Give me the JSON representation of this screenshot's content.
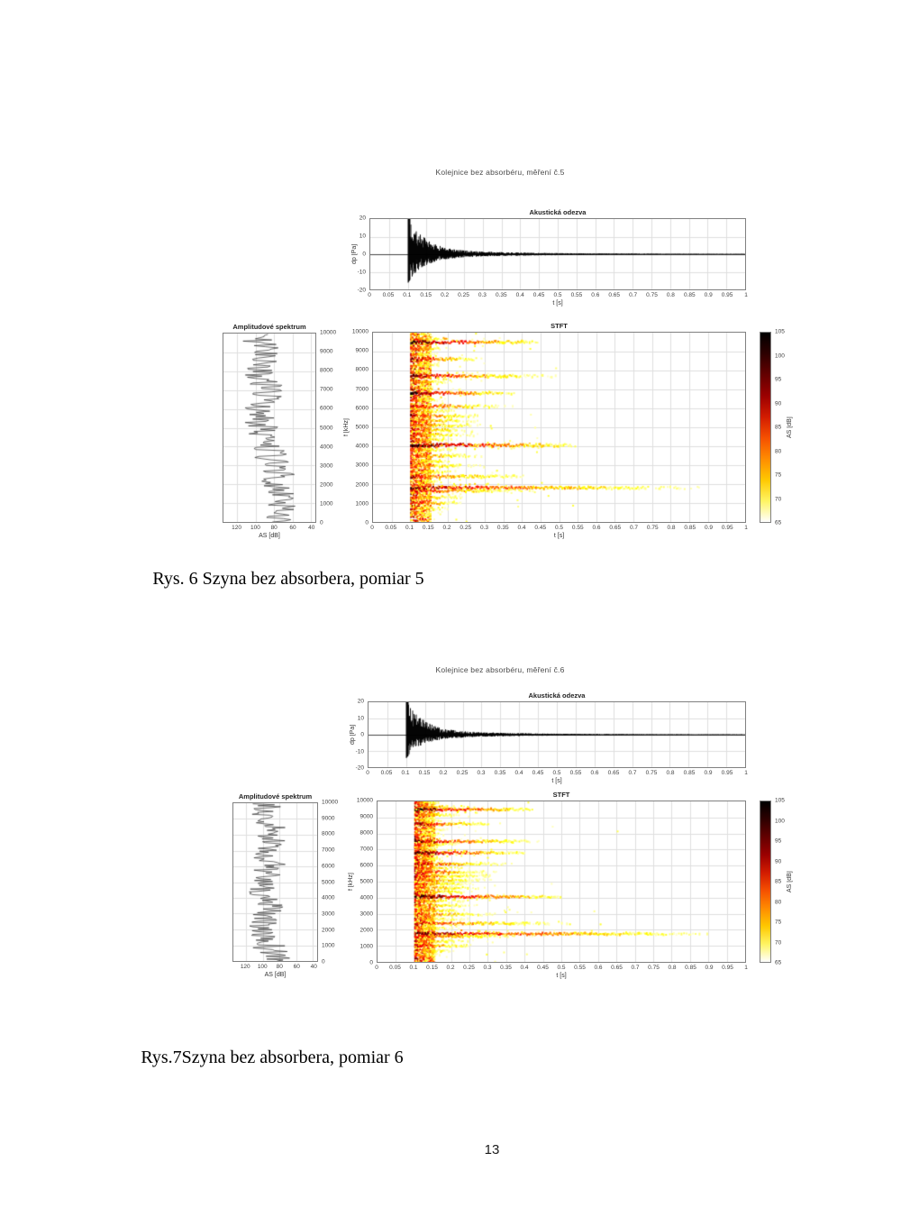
{
  "page": {
    "number": "13"
  },
  "captions": {
    "fig6": "Rys. 6 Szyna bez absorbera, pomiar 5",
    "fig7": "Rys.7Szyna bez absorbera, pomiar 6"
  },
  "colors": {
    "grid": "#dedede",
    "zero_line": "#a8a8a8",
    "axis_frame": "#808080",
    "signal": "#000000",
    "spectrum_line": "#303030",
    "colorbar_top_to_bottom": [
      "#000000",
      "#2e0000",
      "#640000",
      "#9b0000",
      "#d21c00",
      "#f55000",
      "#ff8c00",
      "#ffc800",
      "#fff462",
      "#ffffff"
    ]
  },
  "figures": [
    {
      "window_title": "Kolejnice bez absorbéru, měření č.5",
      "response": {
        "title": "Akustická odezva",
        "xlabel": "t [s]",
        "ylabel": "dp [Pa]",
        "xticks": [
          "0",
          "0.05",
          "0.1",
          "0.15",
          "0.2",
          "0.25",
          "0.3",
          "0.35",
          "0.4",
          "0.45",
          "0.5",
          "0.55",
          "0.6",
          "0.65",
          "0.7",
          "0.75",
          "0.8",
          "0.85",
          "0.9",
          "0.95",
          "1"
        ],
        "yticks": [
          "20",
          "10",
          "0",
          "-10",
          "-20"
        ],
        "chart": {
          "type": "line",
          "xlim": [
            0,
            1
          ],
          "ylim": [
            -20,
            20
          ],
          "onset_s": 0.1,
          "peak_pa": 20,
          "min_pa": -13,
          "seed": 7
        }
      },
      "spectrum": {
        "title": "Amplitudové spektrum",
        "xlabel": "AS [dB]",
        "xticks": [
          "120",
          "100",
          "80",
          "60",
          "40"
        ],
        "yticks": [
          "10000",
          "9000",
          "8000",
          "7000",
          "6000",
          "5000",
          "4000",
          "3000",
          "2000",
          "1000",
          "0"
        ],
        "chart": {
          "type": "line",
          "xlim": [
            135,
            35
          ],
          "ylim": [
            0,
            10000
          ],
          "db_range": [
            56,
            116
          ],
          "seed": 13
        }
      },
      "stft": {
        "title": "STFT",
        "xlabel": "t [s]",
        "ylabel": "f [kHz]",
        "xticks": [
          "0",
          "0.05",
          "0.1",
          "0.15",
          "0.2",
          "0.25",
          "0.3",
          "0.35",
          "0.4",
          "0.45",
          "0.5",
          "0.55",
          "0.6",
          "0.65",
          "0.7",
          "0.75",
          "0.8",
          "0.85",
          "0.9",
          "0.95",
          "1"
        ],
        "yticks": [
          "10000",
          "9000",
          "8000",
          "7000",
          "6000",
          "5000",
          "4000",
          "3000",
          "2000",
          "1000",
          "0"
        ],
        "chart": {
          "type": "heatmap",
          "xlim": [
            0,
            1
          ],
          "ylim": [
            0,
            10000
          ],
          "onset_s": 0.1,
          "seed": 23,
          "bands": [
            {
              "f": 9900,
              "a": 88,
              "d": 0.1
            },
            {
              "f": 9650,
              "a": 90,
              "d": 0.16
            },
            {
              "f": 9500,
              "a": 105,
              "d": 0.34
            },
            {
              "f": 9150,
              "a": 91,
              "d": 0.16
            },
            {
              "f": 8850,
              "a": 88,
              "d": 0.12
            },
            {
              "f": 8600,
              "a": 98,
              "d": 0.22
            },
            {
              "f": 8250,
              "a": 88,
              "d": 0.14
            },
            {
              "f": 7950,
              "a": 87,
              "d": 0.12
            },
            {
              "f": 7700,
              "a": 99,
              "d": 0.4
            },
            {
              "f": 7400,
              "a": 91,
              "d": 0.16
            },
            {
              "f": 7100,
              "a": 88,
              "d": 0.12
            },
            {
              "f": 6800,
              "a": 104,
              "d": 0.28
            },
            {
              "f": 6450,
              "a": 89,
              "d": 0.14
            },
            {
              "f": 6100,
              "a": 95,
              "d": 0.32
            },
            {
              "f": 5850,
              "a": 90,
              "d": 0.18
            },
            {
              "f": 5600,
              "a": 96,
              "d": 0.22
            },
            {
              "f": 5350,
              "a": 92,
              "d": 0.26
            },
            {
              "f": 5100,
              "a": 90,
              "d": 0.3
            },
            {
              "f": 4850,
              "a": 92,
              "d": 0.22
            },
            {
              "f": 4600,
              "a": 90,
              "d": 0.26
            },
            {
              "f": 4350,
              "a": 89,
              "d": 0.22
            },
            {
              "f": 4050,
              "a": 105,
              "d": 0.45
            },
            {
              "f": 3800,
              "a": 88,
              "d": 0.2
            },
            {
              "f": 3500,
              "a": 91,
              "d": 0.28
            },
            {
              "f": 3200,
              "a": 88,
              "d": 0.22
            },
            {
              "f": 2950,
              "a": 90,
              "d": 0.3
            },
            {
              "f": 2650,
              "a": 88,
              "d": 0.22
            },
            {
              "f": 2400,
              "a": 94,
              "d": 0.4
            },
            {
              "f": 2100,
              "a": 87,
              "d": 0.18
            },
            {
              "f": 1800,
              "a": 99,
              "d": 0.8
            },
            {
              "f": 1650,
              "a": 93,
              "d": 0.45
            },
            {
              "f": 1300,
              "a": 90,
              "d": 0.22
            },
            {
              "f": 1000,
              "a": 95,
              "d": 0.18
            },
            {
              "f": 700,
              "a": 91,
              "d": 0.14
            },
            {
              "f": 450,
              "a": 88,
              "d": 0.12
            }
          ]
        }
      },
      "colorbar": {
        "label": "AS [dB]",
        "ticks": [
          "105",
          "100",
          "95",
          "90",
          "85",
          "80",
          "75",
          "70",
          "65"
        ],
        "range": [
          65,
          105
        ]
      }
    },
    {
      "window_title": "Kolejnice bez absorbéru, měření č.6",
      "response": {
        "title": "Akustická odezva",
        "xlabel": "t [s]",
        "ylabel": "dp [Pa]",
        "xticks": [
          "0",
          "0.05",
          "0.1",
          "0.15",
          "0.2",
          "0.25",
          "0.3",
          "0.35",
          "0.4",
          "0.45",
          "0.5",
          "0.55",
          "0.6",
          "0.65",
          "0.7",
          "0.75",
          "0.8",
          "0.85",
          "0.9",
          "0.95",
          "1"
        ],
        "yticks": [
          "20",
          "10",
          "0",
          "-10",
          "-20"
        ],
        "chart": {
          "type": "line",
          "xlim": [
            0,
            1
          ],
          "ylim": [
            -20,
            20
          ],
          "onset_s": 0.1,
          "peak_pa": 20,
          "min_pa": -11,
          "seed": 41
        }
      },
      "spectrum": {
        "title": "Amplitudové spektrum",
        "xlabel": "AS [dB]",
        "xticks": [
          "120",
          "100",
          "80",
          "60",
          "40"
        ],
        "yticks": [
          "10000",
          "9000",
          "8000",
          "7000",
          "6000",
          "5000",
          "4000",
          "3000",
          "2000",
          "1000",
          "0"
        ],
        "chart": {
          "type": "line",
          "xlim": [
            135,
            35
          ],
          "ylim": [
            0,
            10000
          ],
          "db_range": [
            56,
            116
          ],
          "seed": 43
        }
      },
      "stft": {
        "title": "STFT",
        "xlabel": "t [s]",
        "ylabel": "f [kHz]",
        "xticks": [
          "0",
          "0.05",
          "0.1",
          "0.15",
          "0.2",
          "0.25",
          "0.3",
          "0.35",
          "0.4",
          "0.45",
          "0.5",
          "0.55",
          "0.6",
          "0.65",
          "0.7",
          "0.75",
          "0.8",
          "0.85",
          "0.9",
          "0.95",
          "1"
        ],
        "yticks": [
          "10000",
          "9000",
          "8000",
          "7000",
          "6000",
          "5000",
          "4000",
          "3000",
          "2000",
          "1000",
          "0"
        ],
        "chart": {
          "type": "heatmap",
          "xlim": [
            0,
            1
          ],
          "ylim": [
            0,
            10000
          ],
          "onset_s": 0.1,
          "seed": 59,
          "bands": [
            {
              "f": 9900,
              "a": 88,
              "d": 0.12
            },
            {
              "f": 9650,
              "a": 90,
              "d": 0.18
            },
            {
              "f": 9500,
              "a": 105,
              "d": 0.32
            },
            {
              "f": 9150,
              "a": 92,
              "d": 0.18
            },
            {
              "f": 8850,
              "a": 88,
              "d": 0.12
            },
            {
              "f": 8600,
              "a": 99,
              "d": 0.24
            },
            {
              "f": 8250,
              "a": 88,
              "d": 0.14
            },
            {
              "f": 7950,
              "a": 88,
              "d": 0.14
            },
            {
              "f": 7500,
              "a": 100,
              "d": 0.35
            },
            {
              "f": 7300,
              "a": 90,
              "d": 0.18
            },
            {
              "f": 7100,
              "a": 88,
              "d": 0.12
            },
            {
              "f": 6800,
              "a": 104,
              "d": 0.3
            },
            {
              "f": 6450,
              "a": 89,
              "d": 0.14
            },
            {
              "f": 6100,
              "a": 96,
              "d": 0.3
            },
            {
              "f": 5850,
              "a": 91,
              "d": 0.2
            },
            {
              "f": 5600,
              "a": 97,
              "d": 0.24
            },
            {
              "f": 5350,
              "a": 93,
              "d": 0.28
            },
            {
              "f": 5100,
              "a": 90,
              "d": 0.3
            },
            {
              "f": 4850,
              "a": 91,
              "d": 0.24
            },
            {
              "f": 4600,
              "a": 90,
              "d": 0.28
            },
            {
              "f": 4350,
              "a": 90,
              "d": 0.24
            },
            {
              "f": 4050,
              "a": 105,
              "d": 0.4
            },
            {
              "f": 3800,
              "a": 88,
              "d": 0.22
            },
            {
              "f": 3500,
              "a": 90,
              "d": 0.26
            },
            {
              "f": 3200,
              "a": 88,
              "d": 0.24
            },
            {
              "f": 2950,
              "a": 91,
              "d": 0.32
            },
            {
              "f": 2650,
              "a": 88,
              "d": 0.24
            },
            {
              "f": 2400,
              "a": 93,
              "d": 0.55
            },
            {
              "f": 2100,
              "a": 87,
              "d": 0.2
            },
            {
              "f": 1750,
              "a": 100,
              "d": 0.85
            },
            {
              "f": 1600,
              "a": 92,
              "d": 0.4
            },
            {
              "f": 1300,
              "a": 90,
              "d": 0.24
            },
            {
              "f": 1000,
              "a": 95,
              "d": 0.2
            },
            {
              "f": 700,
              "a": 92,
              "d": 0.16
            },
            {
              "f": 450,
              "a": 88,
              "d": 0.12
            }
          ]
        }
      },
      "colorbar": {
        "label": "AS [dB]",
        "ticks": [
          "105",
          "100",
          "95",
          "90",
          "85",
          "80",
          "75",
          "70",
          "65"
        ],
        "range": [
          65,
          105
        ]
      }
    }
  ]
}
